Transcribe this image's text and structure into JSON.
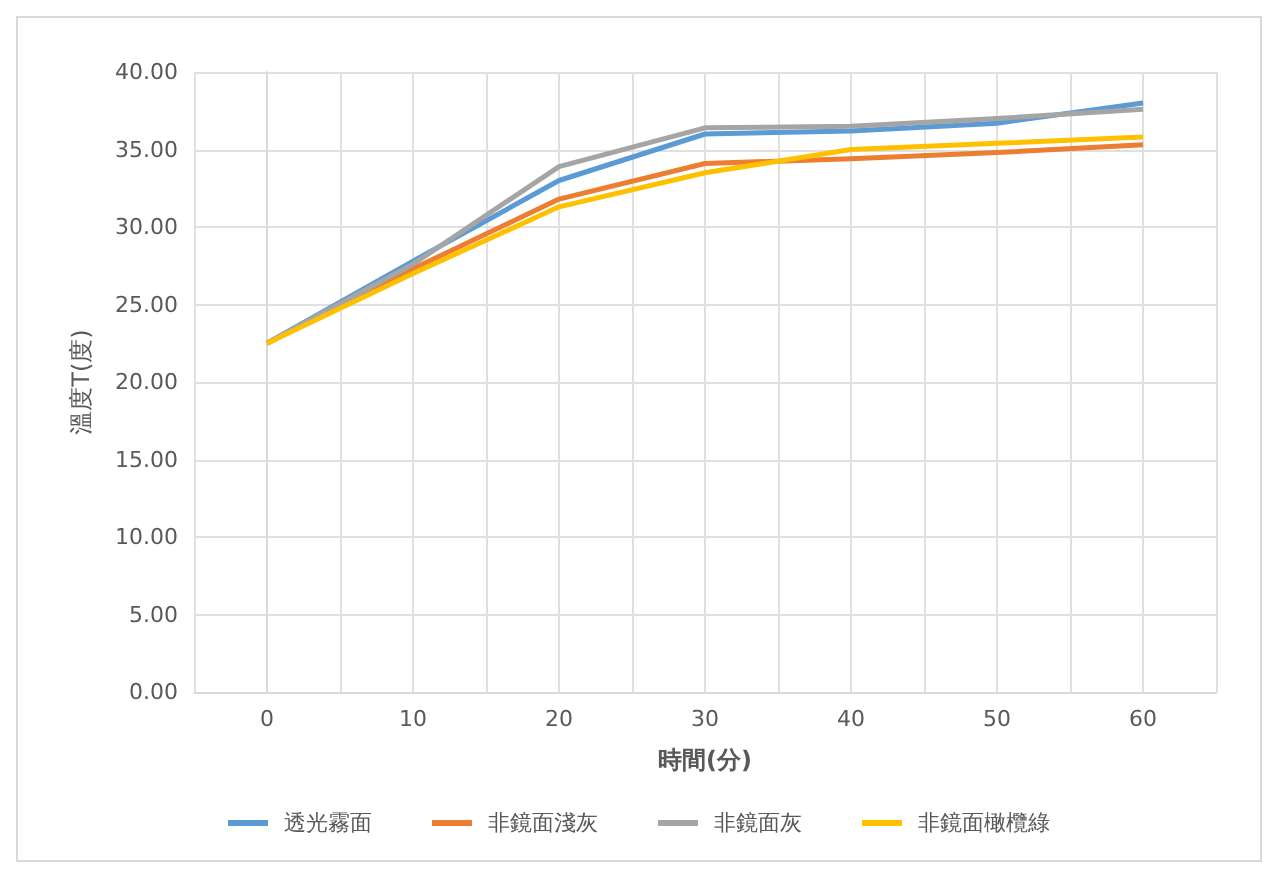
{
  "chart_data": {
    "type": "line",
    "xlabel": "時間(分)",
    "ylabel": "溫度T(度)",
    "x": [
      0,
      10,
      20,
      30,
      40,
      50,
      60
    ],
    "series": [
      {
        "name": "透光霧面",
        "color": "#5b9bd5",
        "values": [
          22.5,
          27.8,
          33.0,
          36.0,
          36.2,
          36.7,
          38.0
        ]
      },
      {
        "name": "非鏡面淺灰",
        "color": "#ed7d31",
        "values": [
          22.5,
          27.3,
          31.8,
          34.1,
          34.4,
          34.8,
          35.3
        ]
      },
      {
        "name": "非鏡面灰",
        "color": "#a5a5a5",
        "values": [
          22.5,
          27.6,
          33.9,
          36.4,
          36.5,
          37.0,
          37.6
        ]
      },
      {
        "name": "非鏡面橄欖綠",
        "color": "#ffc000",
        "values": [
          22.5,
          27.0,
          31.3,
          33.5,
          35.0,
          35.4,
          35.8
        ]
      }
    ],
    "xlim": [
      -5,
      65
    ],
    "xticks": [
      {
        "value": -5,
        "label": null
      },
      0,
      {
        "value": 5,
        "label": null
      },
      10,
      {
        "value": 15,
        "label": null
      },
      20,
      {
        "value": 25,
        "label": null
      },
      30,
      {
        "value": 35,
        "label": null
      },
      40,
      {
        "value": 45,
        "label": null
      },
      50,
      {
        "value": 55,
        "label": null
      },
      60,
      {
        "value": 65,
        "label": null
      }
    ],
    "ylim": [
      0,
      40
    ],
    "yticks": [
      {
        "value": 0,
        "label": "0.00"
      },
      {
        "value": 5,
        "label": "5.00"
      },
      {
        "value": 10,
        "label": "10.00"
      },
      {
        "value": 15,
        "label": "15.00"
      },
      {
        "value": 20,
        "label": "20.00"
      },
      {
        "value": 25,
        "label": "25.00"
      },
      {
        "value": 30,
        "label": "30.00"
      },
      {
        "value": 35,
        "label": "35.00"
      },
      {
        "value": 40,
        "label": "40.00"
      }
    ],
    "grid": true,
    "legend": "bottom",
    "marker": "none",
    "line_style": "solid"
  }
}
